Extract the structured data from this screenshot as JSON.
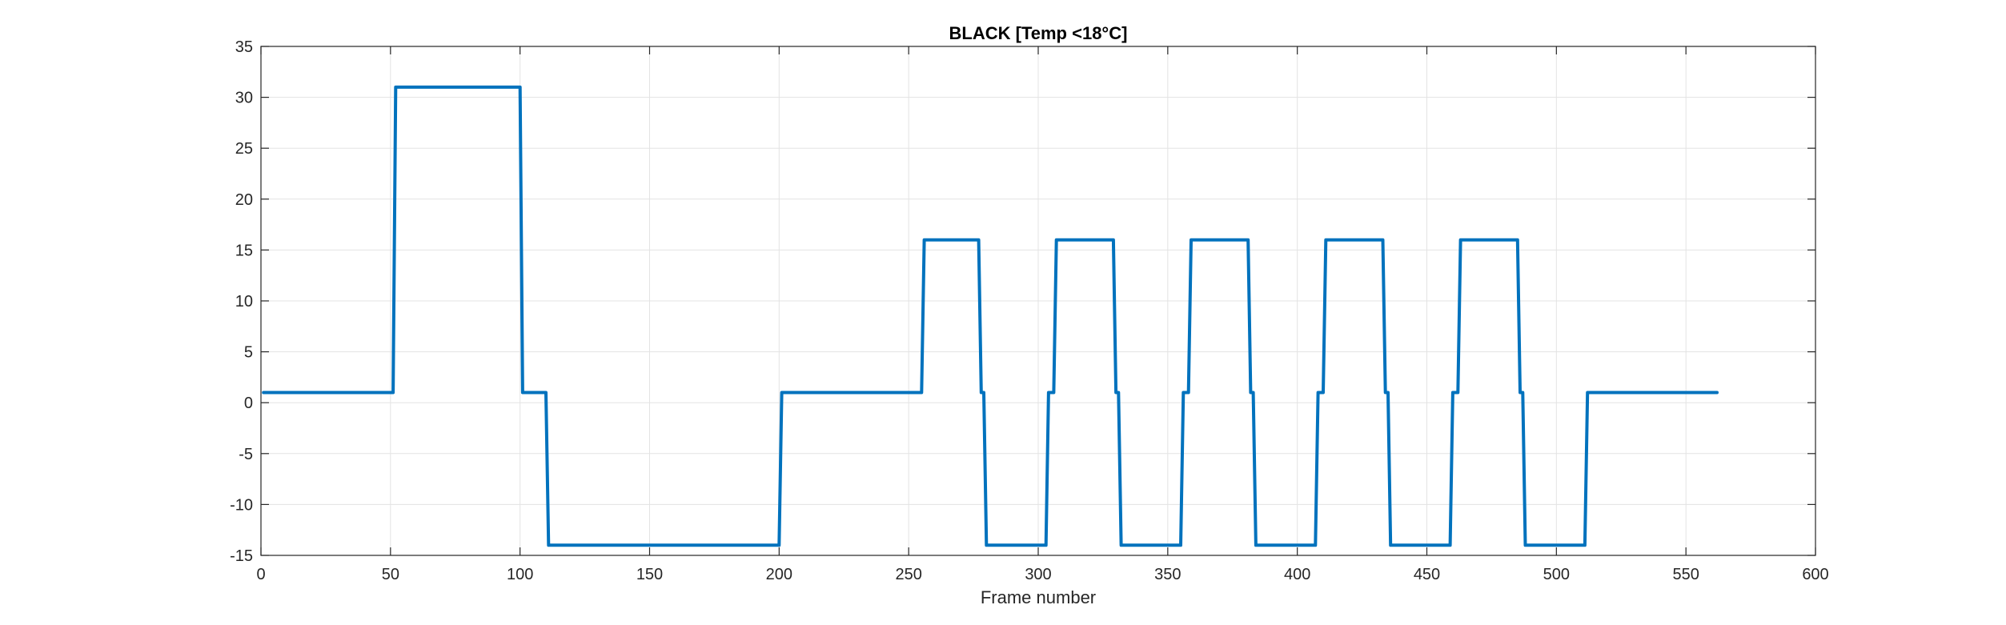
{
  "chart_data": {
    "type": "line",
    "title": "BLACK [Temp <18°C]",
    "xlabel": "Frame number",
    "ylabel": "",
    "xlim": [
      0,
      600
    ],
    "ylim": [
      -15,
      35
    ],
    "xticks": [
      0,
      50,
      100,
      150,
      200,
      250,
      300,
      350,
      400,
      450,
      500,
      550,
      600
    ],
    "yticks": [
      -15,
      -10,
      -5,
      0,
      5,
      10,
      15,
      20,
      25,
      30,
      35
    ],
    "grid": true,
    "box": true,
    "series": [
      {
        "color": "#0072BD",
        "x": [
          1,
          51,
          52,
          100,
          101,
          110,
          111,
          200,
          201,
          255,
          256,
          277,
          278,
          279,
          280,
          303,
          304,
          306,
          307,
          329,
          330,
          331,
          332,
          355,
          356,
          358,
          359,
          381,
          382,
          383,
          384,
          407,
          408,
          410,
          411,
          433,
          434,
          435,
          436,
          459,
          460,
          462,
          463,
          485,
          486,
          487,
          488,
          511,
          512,
          562
        ],
        "y": [
          1,
          1,
          31,
          31,
          1,
          1,
          -14,
          -14,
          1,
          1,
          16,
          16,
          1,
          1,
          -14,
          -14,
          1,
          1,
          16,
          16,
          1,
          1,
          -14,
          -14,
          1,
          1,
          16,
          16,
          1,
          1,
          -14,
          -14,
          1,
          1,
          16,
          16,
          1,
          1,
          -14,
          -14,
          1,
          1,
          16,
          16,
          1,
          1,
          -14,
          -14,
          1,
          1
        ]
      }
    ]
  }
}
